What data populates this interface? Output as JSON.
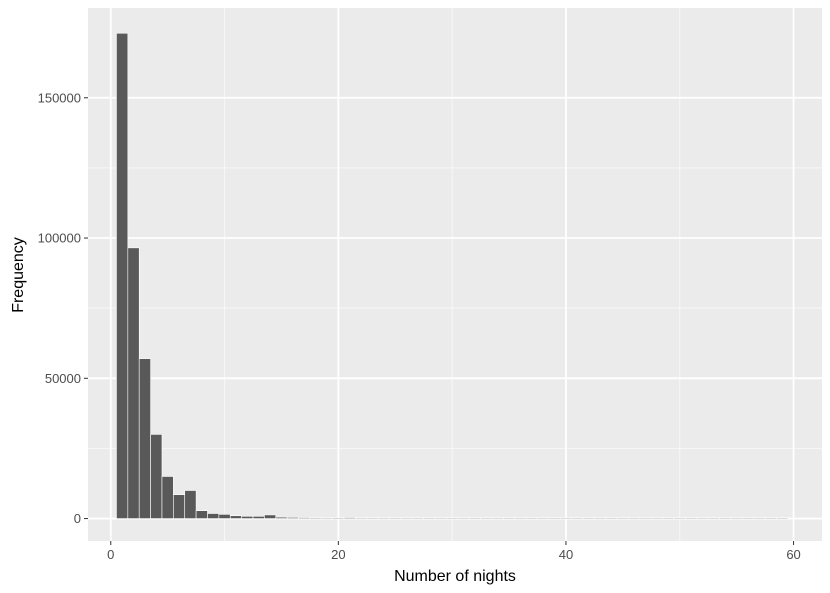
{
  "chart_data": {
    "type": "bar",
    "xlabel": "Number of nights",
    "ylabel": "Frequency",
    "xlim": [
      -2,
      62.5
    ],
    "ylim": [
      -8000,
      182000
    ],
    "x_ticks": [
      0,
      20,
      40,
      60
    ],
    "y_ticks": [
      0,
      50000,
      100000,
      150000
    ],
    "grid": true,
    "bin_width": 1,
    "series": [
      {
        "x": [
          1,
          2,
          3,
          4,
          5,
          6,
          7,
          8,
          9,
          10,
          11,
          12,
          13,
          14,
          15,
          16,
          17,
          18,
          19,
          20,
          21,
          22,
          23,
          24,
          25,
          26,
          27,
          28,
          29,
          30,
          31,
          32,
          33,
          34,
          35,
          36,
          37,
          38,
          39,
          40,
          41,
          42,
          43,
          44,
          45,
          46,
          47,
          48,
          49,
          50,
          51,
          52,
          53,
          54,
          55,
          56,
          57,
          58,
          59
        ],
        "values": [
          173000,
          96500,
          57000,
          30000,
          15000,
          8500,
          10000,
          2800,
          1800,
          1500,
          1000,
          800,
          800,
          1300,
          500,
          400,
          350,
          300,
          250,
          300,
          350,
          200,
          200,
          180,
          150,
          150,
          160,
          250,
          100,
          80,
          80,
          70,
          60,
          100,
          90,
          60,
          50,
          40,
          90,
          40,
          30,
          25,
          25,
          20,
          50,
          15,
          15,
          15,
          12,
          12,
          10,
          10,
          10,
          10,
          10,
          10,
          50,
          30,
          20
        ]
      }
    ],
    "colors": {
      "bar_fill": "#595959",
      "bar_outline": "#ffffff",
      "panel_background": "#ebebeb",
      "grid": "#ffffff"
    }
  }
}
